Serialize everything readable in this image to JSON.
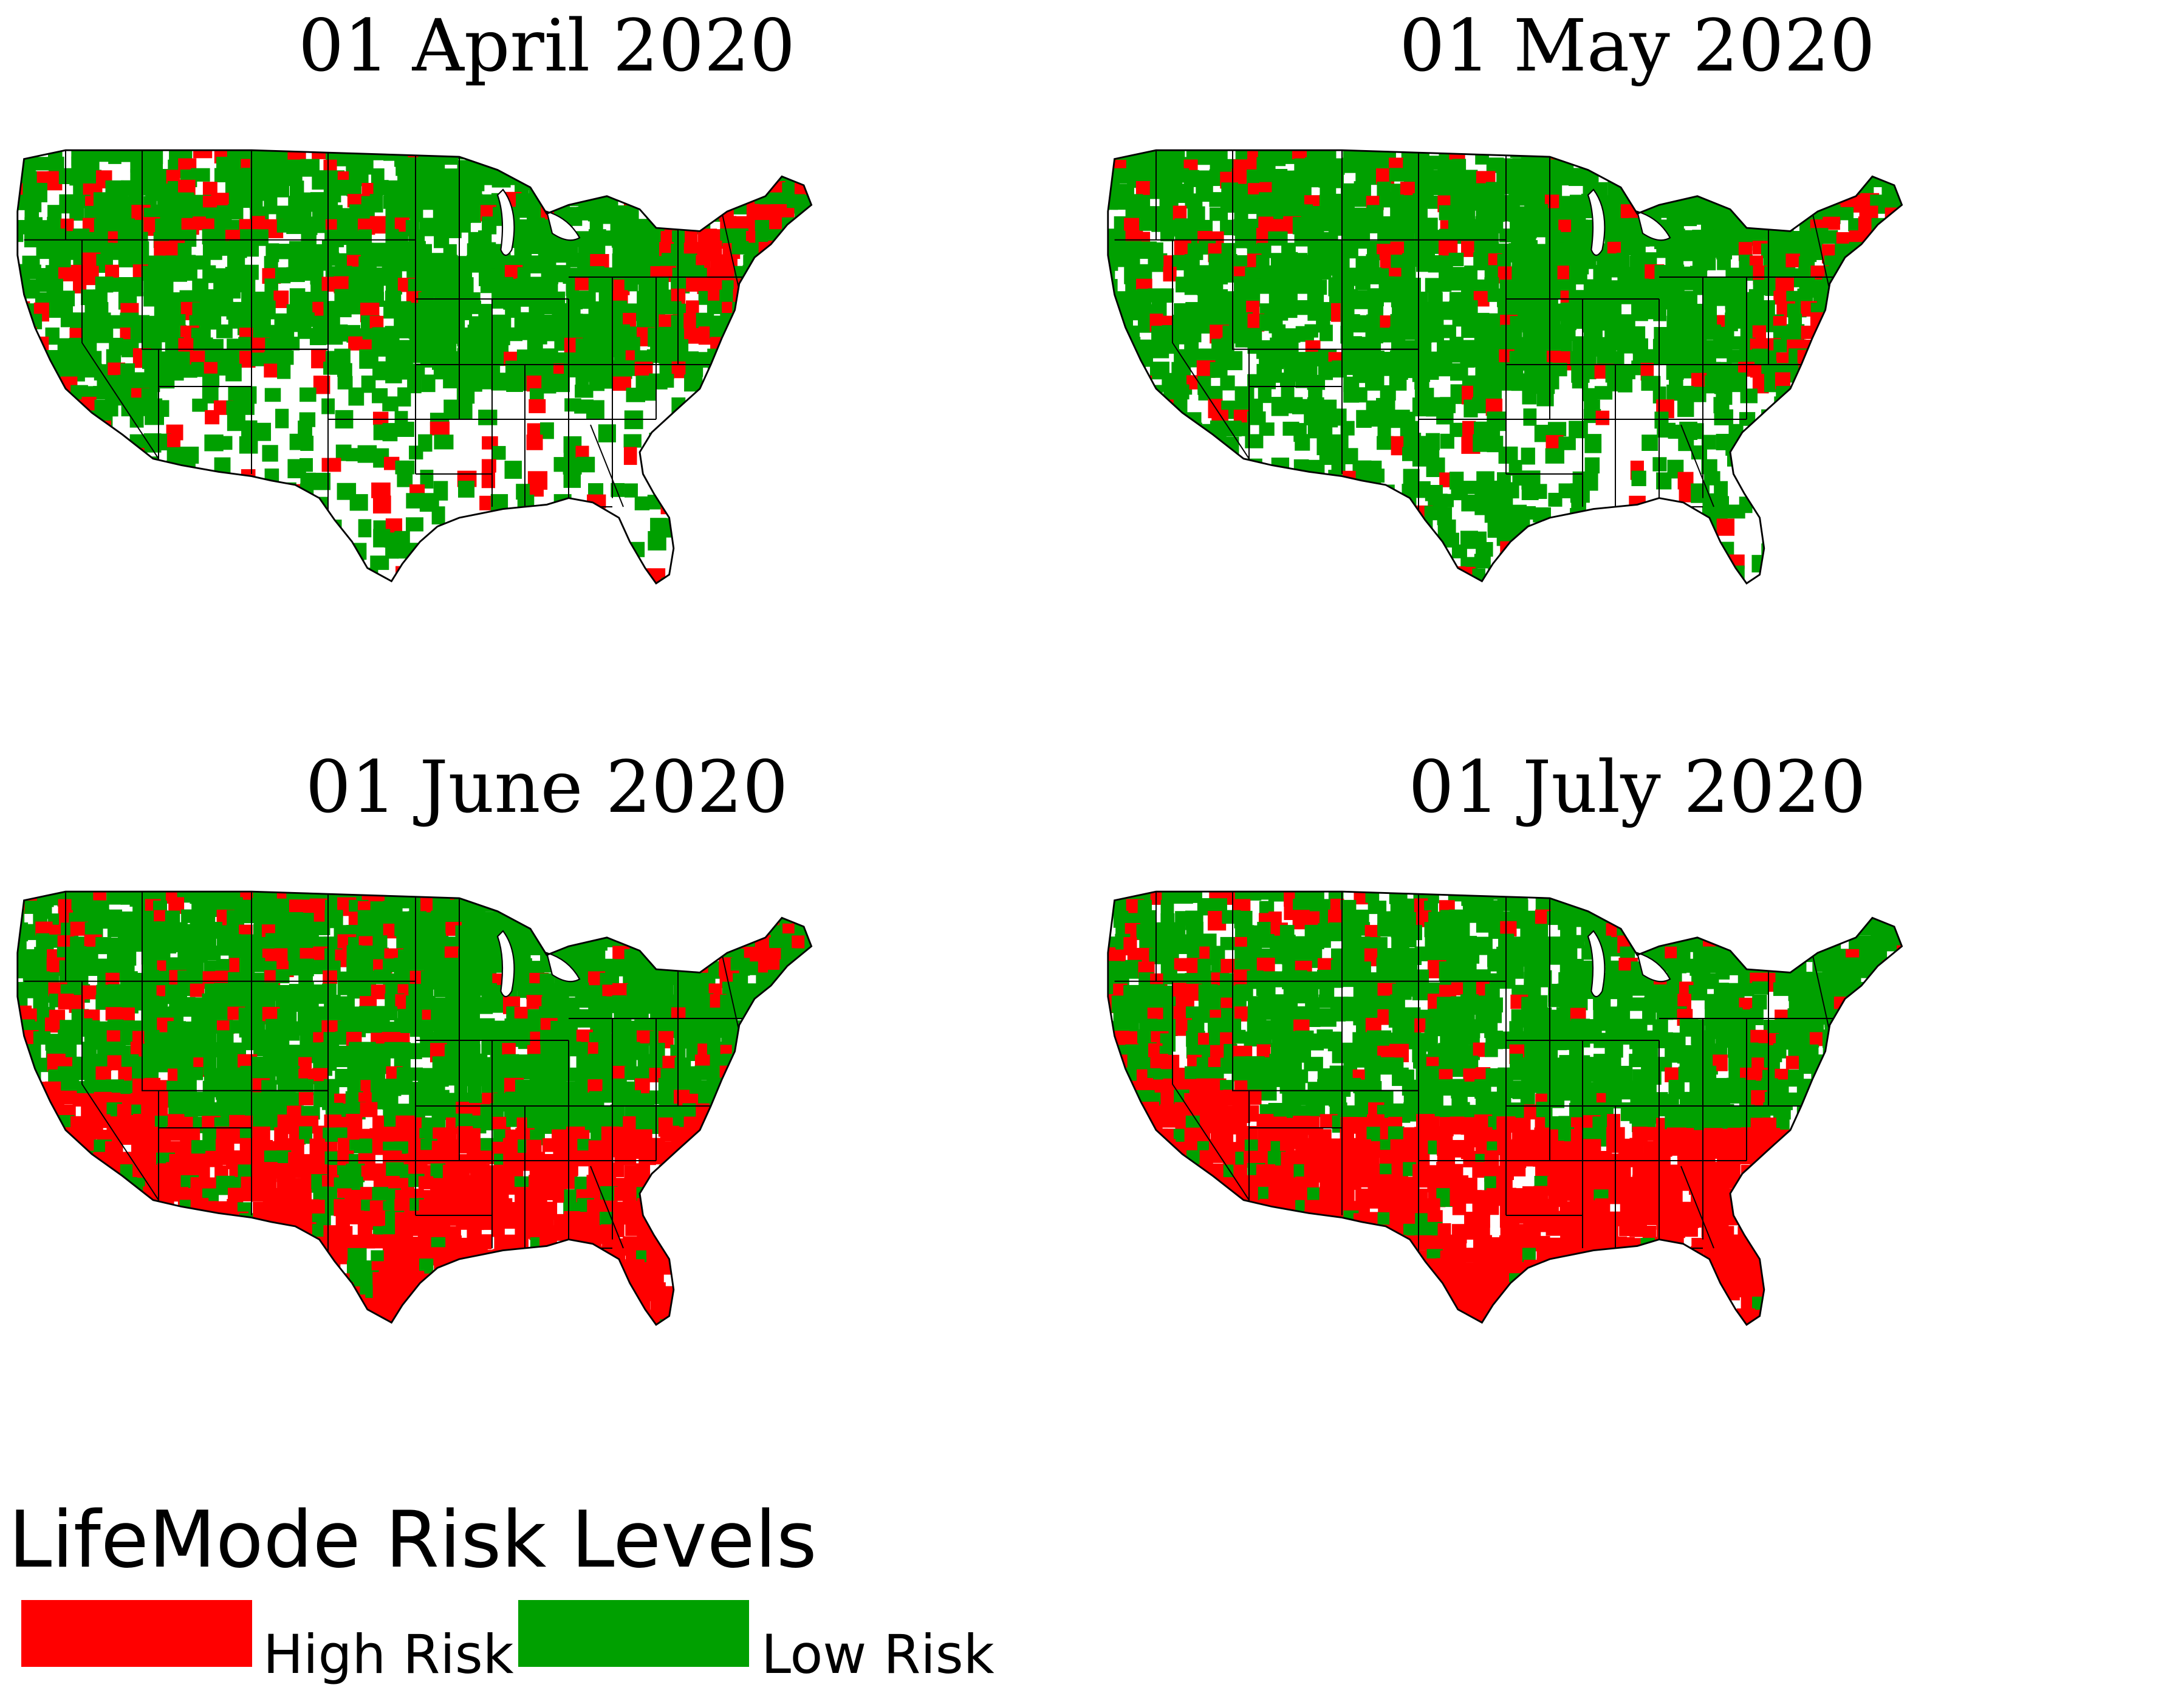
{
  "colors": {
    "high": "#ff0000",
    "low": "#00a000",
    "none": "#ffffff",
    "border": "#000000"
  },
  "panels": [
    {
      "title": "01 April 2020",
      "high_share": 0.08,
      "low_share": 0.58,
      "pattern": "april"
    },
    {
      "title": "01 May 2020",
      "high_share": 0.07,
      "low_share": 0.62,
      "pattern": "may"
    },
    {
      "title": "01 June 2020",
      "high_share": 0.36,
      "low_share": 0.56,
      "pattern": "june"
    },
    {
      "title": "01 July 2020",
      "high_share": 0.4,
      "low_share": 0.5,
      "pattern": "july"
    }
  ],
  "legend": {
    "title": "LifeMode Risk Levels",
    "items": [
      {
        "label": "High Risk",
        "color": "#ff0000"
      },
      {
        "label": "Low Risk",
        "color": "#00a000"
      }
    ]
  }
}
